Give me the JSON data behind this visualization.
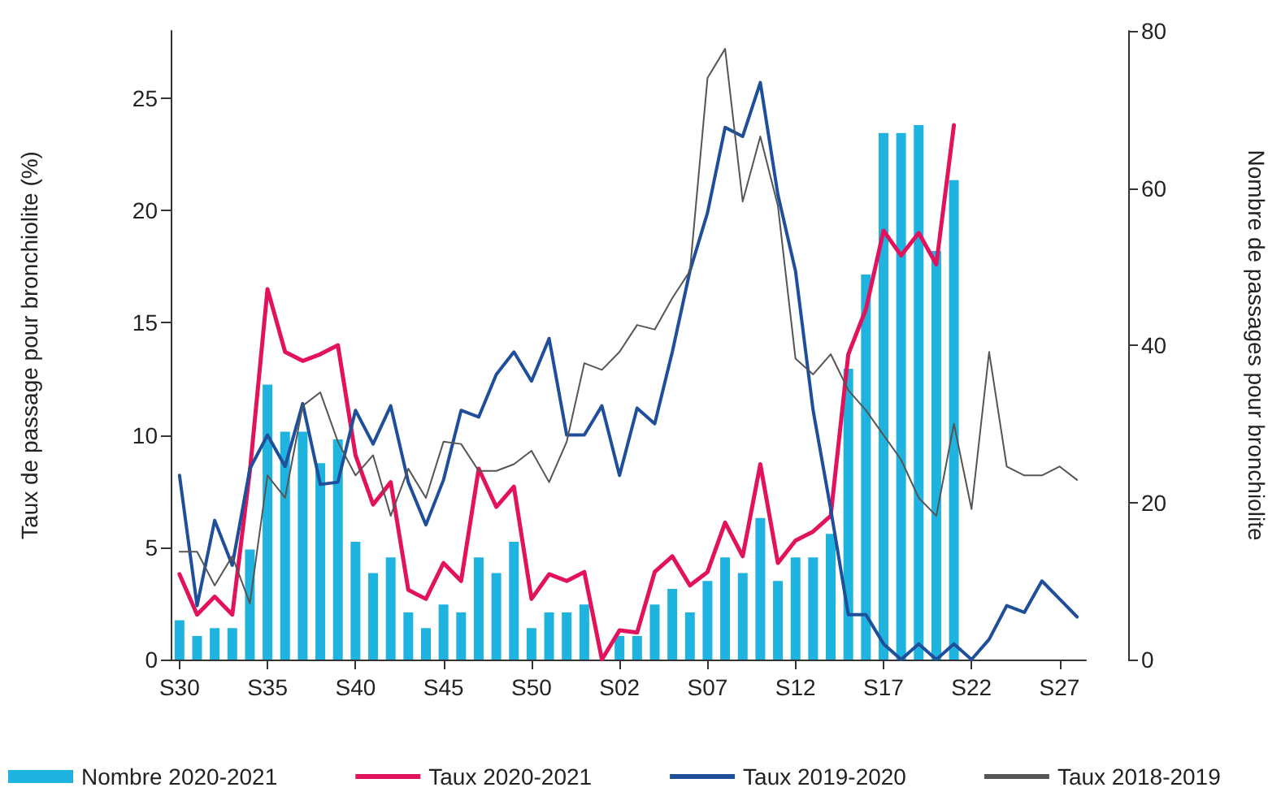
{
  "chart_data": {
    "type": "line",
    "ylabel": "Taux de passage pour bronchiolite (%)",
    "y2label": "Nombre de passages pour bronchiolite",
    "categories": [
      "S30",
      null,
      null,
      null,
      null,
      "S35",
      null,
      null,
      null,
      null,
      "S40",
      null,
      null,
      null,
      null,
      "S45",
      null,
      null,
      null,
      null,
      "S50",
      null,
      null,
      null,
      null,
      "S02",
      null,
      null,
      null,
      null,
      "S07",
      null,
      null,
      null,
      null,
      "S12",
      null,
      null,
      null,
      null,
      "S17",
      null,
      null,
      null,
      null,
      "S22",
      null,
      null,
      null,
      null,
      "S27",
      null
    ],
    "series": [
      {
        "name": "Nombre 2020-2021",
        "type": "bar",
        "axis": "y2",
        "color": "#1fb3e0",
        "values": [
          5,
          3,
          4,
          4,
          14,
          35,
          29,
          29,
          25,
          28,
          15,
          11,
          13,
          6,
          4,
          7,
          6,
          13,
          11,
          15,
          4,
          6,
          6,
          7,
          0,
          3,
          3,
          7,
          9,
          6,
          10,
          13,
          11,
          18,
          10,
          13,
          13,
          16,
          37,
          49,
          67,
          67,
          68,
          52,
          61,
          null,
          null,
          null,
          null,
          null,
          null,
          null
        ]
      },
      {
        "name": "Taux 2020-2021",
        "color": "#e2125c",
        "values": [
          3.8,
          2.0,
          2.8,
          2.0,
          8.4,
          16.5,
          13.7,
          13.3,
          13.6,
          14.0,
          9.1,
          6.9,
          7.9,
          3.1,
          2.7,
          4.3,
          3.5,
          8.5,
          6.8,
          7.7,
          2.7,
          3.8,
          3.5,
          3.9,
          0,
          1.3,
          1.2,
          3.9,
          4.6,
          3.3,
          3.9,
          6.1,
          4.6,
          8.7,
          4.3,
          5.3,
          5.7,
          6.4,
          13.6,
          15.6,
          19.1,
          18.0,
          19.0,
          17.6,
          23.8,
          null,
          null,
          null,
          null,
          null,
          null,
          null
        ]
      },
      {
        "name": "Taux 2019-2020",
        "color": "#1f4f9a",
        "values": [
          8.2,
          2.4,
          6.2,
          4.2,
          8.5,
          10.0,
          8.6,
          11.4,
          7.8,
          7.9,
          11.1,
          9.6,
          11.3,
          7.9,
          6.0,
          8.0,
          11.1,
          10.8,
          12.7,
          13.7,
          12.4,
          14.3,
          10.0,
          10.0,
          11.3,
          8.2,
          11.2,
          10.5,
          13.7,
          17.3,
          19.9,
          23.7,
          23.3,
          25.7,
          20.7,
          17.3,
          11.1,
          6.7,
          2.0,
          2.0,
          0.7,
          0,
          0.7,
          0,
          0.7,
          0,
          0.9,
          2.4,
          2.1,
          3.5,
          2.7,
          1.9
        ]
      },
      {
        "name": "Taux 2018-2019",
        "color": "#555555",
        "values": [
          4.8,
          4.8,
          3.3,
          4.6,
          2.5,
          8.2,
          7.2,
          11.3,
          11.9,
          9.7,
          8.2,
          9.1,
          6.4,
          8.5,
          7.2,
          9.7,
          9.6,
          8.4,
          8.4,
          8.7,
          9.3,
          7.9,
          9.7,
          13.2,
          12.9,
          13.7,
          14.9,
          14.7,
          16.1,
          17.3,
          25.9,
          27.2,
          20.4,
          23.3,
          20.2,
          13.4,
          12.7,
          13.6,
          12.0,
          11.1,
          10.0,
          8.9,
          7.2,
          6.4,
          10.5,
          6.7,
          13.7,
          8.6,
          8.2,
          8.2,
          8.6,
          8.0
        ]
      }
    ],
    "ylim": [
      0,
      28
    ],
    "yticks": [
      0,
      5,
      10,
      15,
      20,
      25
    ],
    "y2lim": [
      0,
      80
    ],
    "y2ticks": [
      0,
      20,
      40,
      60,
      80
    ],
    "grid": false,
    "legend": "bottom",
    "marker": "none",
    "line_style": "solid"
  }
}
